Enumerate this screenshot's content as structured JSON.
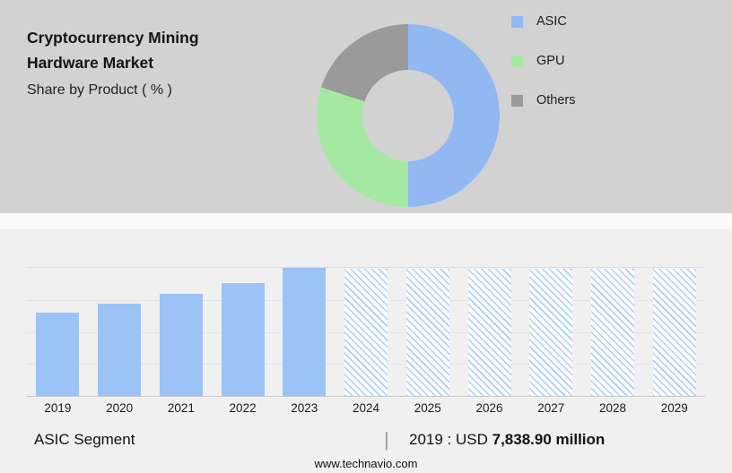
{
  "header": {
    "title_line1": "Cryptocurrency Mining",
    "title_line2": "Hardware Market",
    "subtitle": "Share by Product ( % )"
  },
  "colors": {
    "asic": "#92b8f4",
    "gpu": "#a4e8a2",
    "others": "#9a9a9a",
    "bar_solid": "#9cc3f5",
    "bar_hatch": "#aecdf2",
    "top_panel_bg": "#d2d2d2",
    "bottom_panel_bg": "#f0f0f0"
  },
  "legend": [
    {
      "label": "ASIC",
      "color": "#92b8f4"
    },
    {
      "label": "GPU",
      "color": "#a4e8a2"
    },
    {
      "label": "Others",
      "color": "#9a9a9a"
    }
  ],
  "chart_data": [
    {
      "type": "pie",
      "title": "Share by Product ( % )",
      "labels": [
        "ASIC",
        "GPU",
        "Others"
      ],
      "values": [
        50,
        30,
        20
      ],
      "legend_position": "right",
      "style": "donut"
    },
    {
      "type": "bar",
      "categories": [
        "2019",
        "2020",
        "2021",
        "2022",
        "2023",
        "2024",
        "2025",
        "2026",
        "2027",
        "2028",
        "2029"
      ],
      "values": [
        65,
        72,
        80,
        88,
        100,
        99,
        99,
        99,
        99,
        99,
        99
      ],
      "ylim": [
        0,
        100
      ],
      "units": "relative bar height (% of tallest bar); 2019 labeled value: USD 7,838.90 million",
      "grid": true,
      "historic_years": [
        "2019",
        "2020",
        "2021",
        "2022",
        "2023"
      ],
      "forecast_years": [
        "2024",
        "2025",
        "2026",
        "2027",
        "2028",
        "2029"
      ]
    }
  ],
  "caption": {
    "segment": "ASIC Segment",
    "separator": "|",
    "value_prefix": "2019 : USD ",
    "value_bold": "7,838.90 million"
  },
  "footer": {
    "website": "www.technavio.com"
  }
}
